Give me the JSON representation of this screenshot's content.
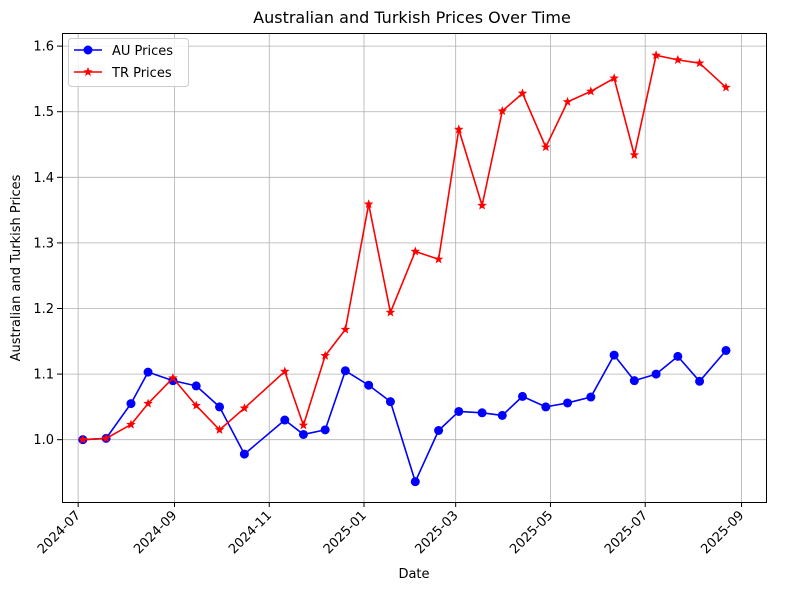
{
  "chart_data": {
    "type": "line",
    "title": "Australian and Turkish Prices Over Time",
    "xlabel": "Date",
    "ylabel": "Australian and Turkish Prices",
    "grid": true,
    "legend_position": "top-left",
    "x_ticks": [
      "2024-07",
      "2024-09",
      "2024-11",
      "2025-01",
      "2025-03",
      "2025-05",
      "2025-07",
      "2025-09"
    ],
    "y_ticks": [
      "1.0",
      "1.1",
      "1.2",
      "1.3",
      "1.4",
      "1.5",
      "1.6"
    ],
    "ylim": [
      0.905,
      1.62
    ],
    "series": [
      {
        "name": "AU Prices",
        "color": "#0000ff",
        "marker": "circle",
        "points": [
          [
            "2024-07-04",
            1.0
          ],
          [
            "2024-07-19",
            1.002
          ],
          [
            "2024-08-04",
            1.055
          ],
          [
            "2024-08-15",
            1.103
          ],
          [
            "2024-08-31",
            1.09
          ],
          [
            "2024-09-15",
            1.082
          ],
          [
            "2024-09-30",
            1.05
          ],
          [
            "2024-10-16",
            0.978
          ],
          [
            "2024-11-11",
            1.03
          ],
          [
            "2024-11-23",
            1.008
          ],
          [
            "2024-12-07",
            1.015
          ],
          [
            "2024-12-20",
            1.105
          ],
          [
            "2025-01-04",
            1.083
          ],
          [
            "2025-01-18",
            1.058
          ],
          [
            "2025-02-03",
            0.936
          ],
          [
            "2025-02-18",
            1.014
          ],
          [
            "2025-03-03",
            1.043
          ],
          [
            "2025-03-18",
            1.041
          ],
          [
            "2025-03-31",
            1.037
          ],
          [
            "2025-04-13",
            1.066
          ],
          [
            "2025-04-28",
            1.05
          ],
          [
            "2025-05-12",
            1.056
          ],
          [
            "2025-05-27",
            1.065
          ],
          [
            "2025-06-11",
            1.129
          ],
          [
            "2025-06-24",
            1.09
          ],
          [
            "2025-07-08",
            1.1
          ],
          [
            "2025-07-22",
            1.127
          ],
          [
            "2025-08-05",
            1.089
          ],
          [
            "2025-08-22",
            1.136
          ]
        ]
      },
      {
        "name": "TR Prices",
        "color": "#ff0000",
        "marker": "star",
        "points": [
          [
            "2024-07-04",
            1.0
          ],
          [
            "2024-07-19",
            1.002
          ],
          [
            "2024-08-04",
            1.023
          ],
          [
            "2024-08-15",
            1.055
          ],
          [
            "2024-08-31",
            1.094
          ],
          [
            "2024-09-15",
            1.052
          ],
          [
            "2024-09-30",
            1.015
          ],
          [
            "2024-10-16",
            1.048
          ],
          [
            "2024-11-11",
            1.104
          ],
          [
            "2024-11-23",
            1.022
          ],
          [
            "2024-12-07",
            1.128
          ],
          [
            "2024-12-20",
            1.168
          ],
          [
            "2025-01-04",
            1.359
          ],
          [
            "2025-01-18",
            1.194
          ],
          [
            "2025-02-03",
            1.287
          ],
          [
            "2025-02-18",
            1.275
          ],
          [
            "2025-03-03",
            1.473
          ],
          [
            "2025-03-18",
            1.357
          ],
          [
            "2025-03-31",
            1.501
          ],
          [
            "2025-04-13",
            1.528
          ],
          [
            "2025-04-28",
            1.446
          ],
          [
            "2025-05-12",
            1.515
          ],
          [
            "2025-05-27",
            1.531
          ],
          [
            "2025-06-11",
            1.551
          ],
          [
            "2025-06-24",
            1.434
          ],
          [
            "2025-07-08",
            1.586
          ],
          [
            "2025-07-22",
            1.579
          ],
          [
            "2025-08-05",
            1.574
          ],
          [
            "2025-08-22",
            1.537
          ]
        ]
      }
    ]
  }
}
